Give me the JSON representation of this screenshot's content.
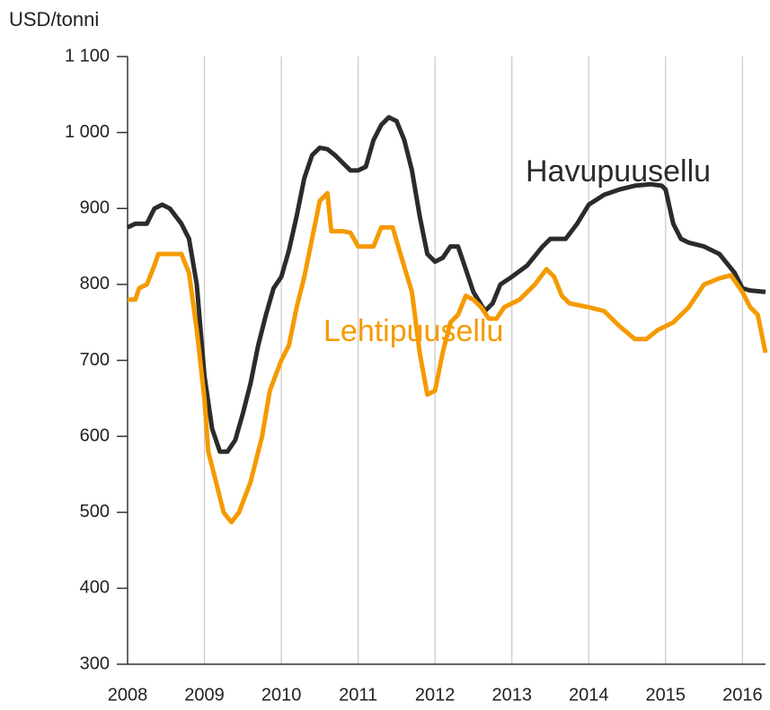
{
  "chart_data": {
    "type": "line",
    "ylabel": "USD/tonni",
    "xlim": [
      2008,
      2016.3
    ],
    "xticks": [
      2008,
      2009,
      2010,
      2011,
      2012,
      2013,
      2014,
      2015,
      2016
    ],
    "ylim": [
      300,
      1100
    ],
    "yticks": [
      300,
      400,
      500,
      600,
      700,
      800,
      900,
      {
        "value": 1000,
        "label": "1 000"
      },
      {
        "value": 1100,
        "label": "1 100"
      }
    ],
    "grid": "x",
    "series": [
      {
        "name": "Havupuusellu",
        "color": "#2b2b2b",
        "x": [
          2008.0,
          2008.1,
          2008.25,
          2008.35,
          2008.45,
          2008.55,
          2008.7,
          2008.8,
          2008.9,
          2009.0,
          2009.1,
          2009.2,
          2009.3,
          2009.4,
          2009.5,
          2009.6,
          2009.7,
          2009.8,
          2009.9,
          2010.0,
          2010.1,
          2010.2,
          2010.3,
          2010.4,
          2010.5,
          2010.6,
          2010.7,
          2010.8,
          2010.9,
          2011.0,
          2011.1,
          2011.2,
          2011.3,
          2011.4,
          2011.5,
          2011.6,
          2011.7,
          2011.8,
          2011.9,
          2012.0,
          2012.1,
          2012.2,
          2012.3,
          2012.4,
          2012.5,
          2012.65,
          2012.75,
          2012.85,
          2013.0,
          2013.2,
          2013.4,
          2013.5,
          2013.7,
          2013.85,
          2014.0,
          2014.2,
          2014.4,
          2014.6,
          2014.8,
          2014.95,
          2015.0,
          2015.1,
          2015.2,
          2015.3,
          2015.5,
          2015.7,
          2015.9,
          2016.0,
          2016.1,
          2016.3
        ],
        "values": [
          875,
          880,
          880,
          900,
          905,
          900,
          880,
          860,
          800,
          680,
          610,
          580,
          580,
          595,
          630,
          670,
          720,
          760,
          795,
          810,
          845,
          890,
          940,
          970,
          980,
          978,
          970,
          960,
          950,
          950,
          955,
          990,
          1010,
          1020,
          1015,
          990,
          950,
          890,
          840,
          830,
          835,
          850,
          850,
          820,
          790,
          765,
          775,
          800,
          810,
          825,
          850,
          860,
          860,
          880,
          905,
          918,
          925,
          930,
          932,
          930,
          925,
          880,
          860,
          855,
          850,
          840,
          815,
          795,
          792,
          790
        ]
      },
      {
        "name": "Lehtipuusellu",
        "color": "#f59a00",
        "x": [
          2008.0,
          2008.1,
          2008.15,
          2008.25,
          2008.35,
          2008.4,
          2008.6,
          2008.7,
          2008.8,
          2008.9,
          2009.0,
          2009.05,
          2009.15,
          2009.25,
          2009.35,
          2009.45,
          2009.6,
          2009.75,
          2009.85,
          2010.0,
          2010.1,
          2010.2,
          2010.3,
          2010.4,
          2010.5,
          2010.6,
          2010.65,
          2010.8,
          2010.9,
          2011.0,
          2011.2,
          2011.3,
          2011.45,
          2011.55,
          2011.7,
          2011.8,
          2011.9,
          2012.0,
          2012.1,
          2012.2,
          2012.3,
          2012.4,
          2012.5,
          2012.6,
          2012.7,
          2012.8,
          2012.9,
          2013.1,
          2013.3,
          2013.45,
          2013.55,
          2013.65,
          2013.75,
          2014.0,
          2014.2,
          2014.4,
          2014.6,
          2014.75,
          2014.9,
          2015.1,
          2015.3,
          2015.5,
          2015.7,
          2015.85,
          2016.0,
          2016.1,
          2016.2,
          2016.3
        ],
        "values": [
          780,
          780,
          795,
          800,
          825,
          840,
          840,
          840,
          815,
          740,
          650,
          580,
          540,
          500,
          487,
          500,
          540,
          600,
          660,
          700,
          720,
          770,
          810,
          860,
          910,
          920,
          870,
          870,
          868,
          850,
          850,
          875,
          875,
          840,
          790,
          710,
          655,
          660,
          710,
          750,
          760,
          785,
          780,
          770,
          755,
          755,
          770,
          780,
          800,
          820,
          810,
          785,
          775,
          770,
          765,
          745,
          728,
          728,
          740,
          750,
          770,
          800,
          808,
          812,
          790,
          770,
          760,
          710
        ]
      }
    ]
  }
}
